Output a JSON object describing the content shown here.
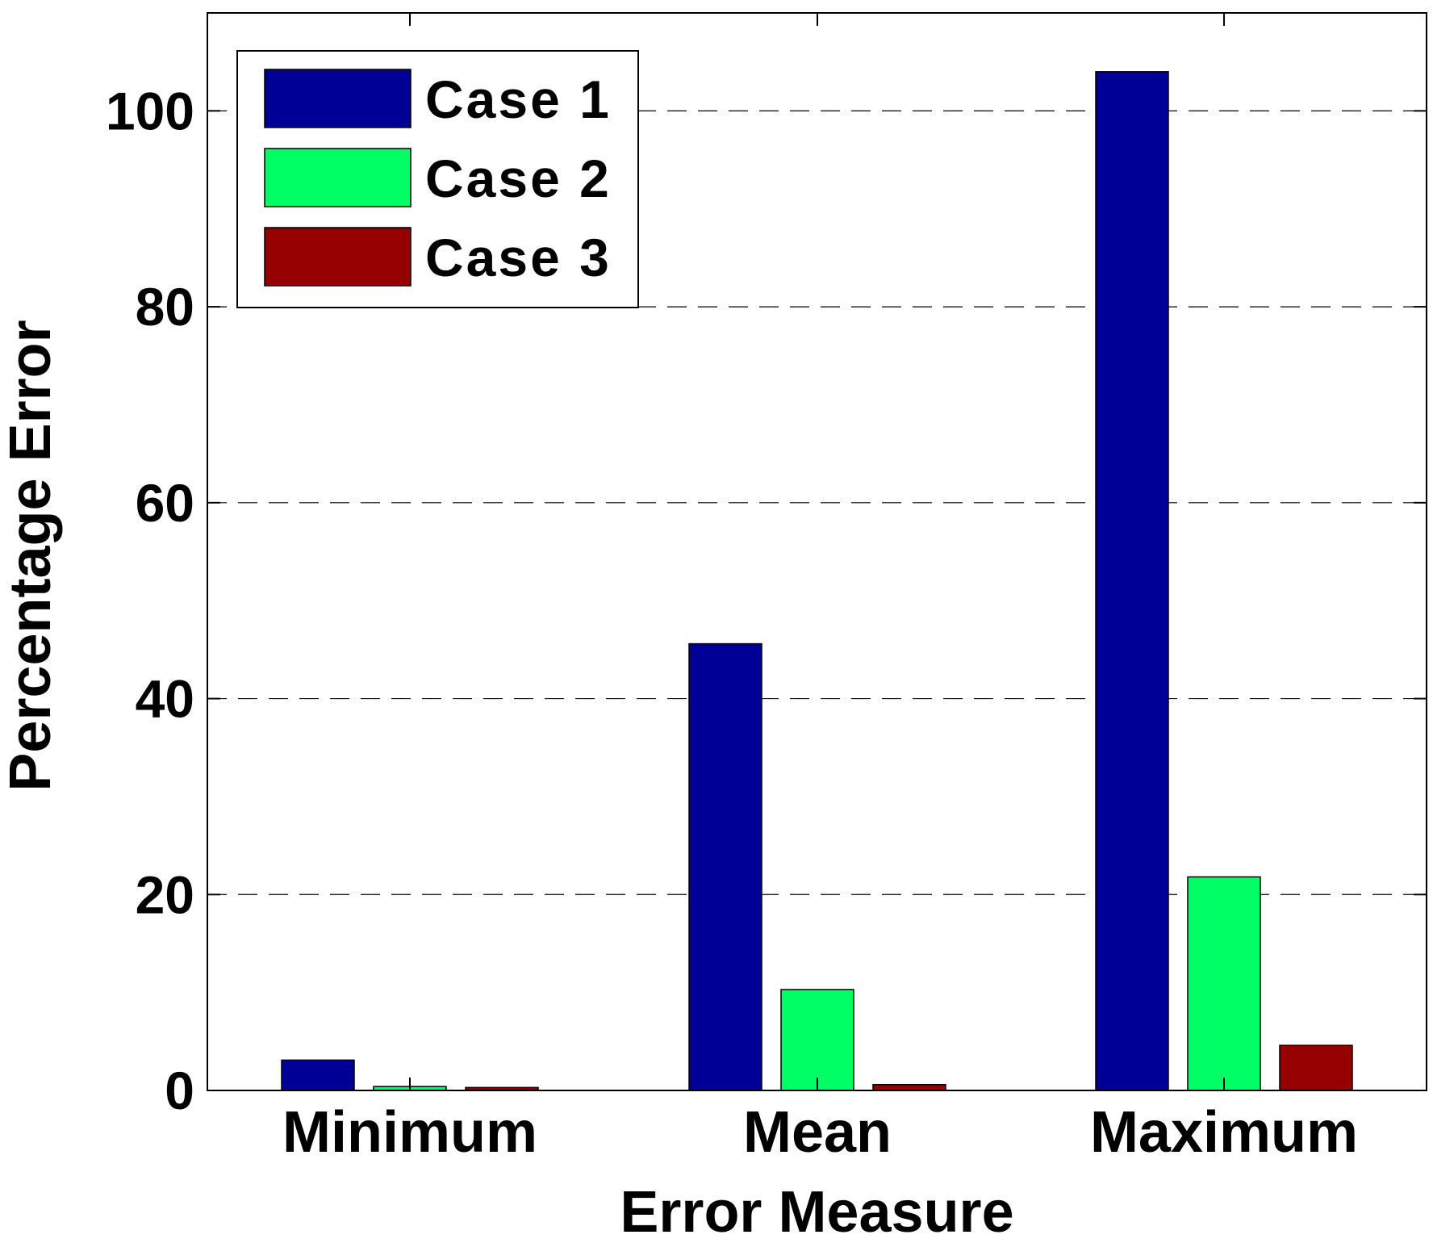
{
  "chart_data": {
    "type": "bar",
    "title": "",
    "xlabel": "Error Measure",
    "ylabel": "Percentage Error",
    "categories": [
      "Minimum",
      "Mean",
      "Maximum"
    ],
    "series": [
      {
        "name": "Case 1",
        "color": "#000096",
        "values": [
          3.1,
          45.6,
          104.0
        ]
      },
      {
        "name": "Case 2",
        "color": "#00FF64",
        "values": [
          0.4,
          10.3,
          21.8
        ]
      },
      {
        "name": "Case 3",
        "color": "#960000",
        "values": [
          0.3,
          0.6,
          4.6
        ]
      }
    ],
    "ylim": [
      0,
      110
    ],
    "yticks": [
      0,
      20,
      40,
      60,
      80,
      100
    ],
    "ytick_labels": [
      "0",
      "20",
      "40",
      "60",
      "80",
      "100"
    ],
    "grid": "horizontal dashed",
    "legend_position": "top-left"
  }
}
